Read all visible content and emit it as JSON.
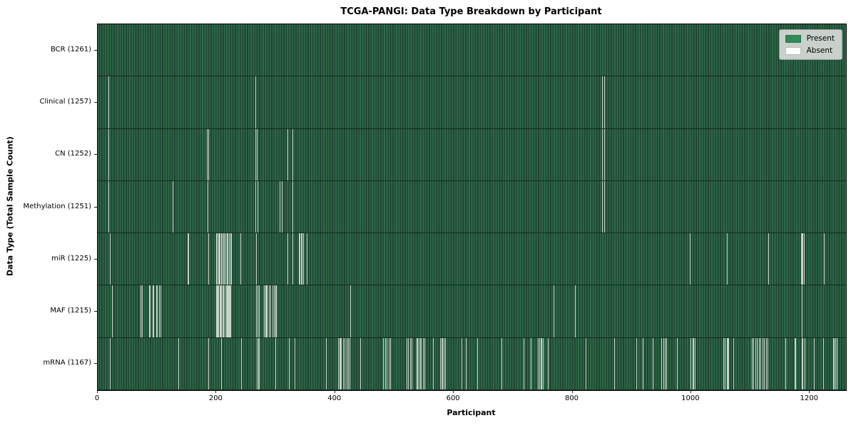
{
  "chart_data": {
    "type": "heatmap",
    "title": "TCGA-PANGI: Data Type Breakdown by Participant",
    "xlabel": "Participant",
    "ylabel": "Data Type (Total Sample Count)",
    "x_ticks": [
      0,
      200,
      400,
      600,
      800,
      1000,
      1200
    ],
    "xlim": [
      0,
      1261
    ],
    "n_participants": 1261,
    "grid": false,
    "legend": {
      "position": "upper right",
      "items": [
        {
          "label": "Present",
          "color": "#2e8b57"
        },
        {
          "label": "Absent",
          "color": "#ffffff"
        }
      ]
    },
    "colors": {
      "present": "#2e8b57",
      "absent": "#ffffff",
      "stripe_light": "#2f6a49",
      "stripe_dark": "#1e4531",
      "absent_line": "#c9d3ca",
      "row_divider": "#142a1c",
      "legend_bg": "#d8dbd8"
    },
    "rows": [
      {
        "label": "BCR",
        "count": 1261,
        "display": "BCR (1261)",
        "absent_indices": []
      },
      {
        "label": "Clinical",
        "count": 1257,
        "display": "Clinical (1257)",
        "absent_indices": [
          18,
          266,
          850,
          853
        ]
      },
      {
        "label": "CN",
        "count": 1252,
        "display": "CN (1252)",
        "absent_indices": [
          18,
          184,
          186,
          266,
          268,
          320,
          328,
          850,
          853
        ]
      },
      {
        "label": "Methylation",
        "count": 1251,
        "display": "Methylation (1251)",
        "absent_indices": [
          18,
          126,
          185,
          266,
          269,
          306,
          310,
          328,
          850,
          853
        ]
      },
      {
        "label": "miR",
        "count": 1225,
        "display": "miR (1225)",
        "absent_indices": [
          20,
          152,
          186,
          200,
          201,
          203,
          204,
          206,
          208,
          209,
          211,
          213,
          215,
          217,
          219,
          221,
          223,
          225,
          240,
          267,
          320,
          328,
          339,
          340,
          342,
          344,
          346,
          352,
          998,
          1060,
          1130,
          1185,
          1186,
          1188,
          1190,
          1224
        ]
      },
      {
        "label": "MAF",
        "count": 1215,
        "display": "MAF (1215)",
        "absent_indices": [
          24,
          72,
          75,
          86,
          88,
          92,
          94,
          98,
          100,
          103,
          106,
          200,
          201,
          202,
          203,
          205,
          206,
          207,
          208,
          210,
          212,
          214,
          216,
          218,
          219,
          220,
          221,
          222,
          223,
          224,
          267,
          269,
          272,
          280,
          283,
          285,
          288,
          291,
          294,
          297,
          299,
          300,
          425,
          768,
          804,
          1186
        ]
      },
      {
        "label": "mRNA",
        "count": 1167,
        "display": "mRNA (1167)",
        "absent_indices": [
          20,
          136,
          186,
          208,
          242,
          268,
          270,
          272,
          299,
          322,
          332,
          385,
          405,
          408,
          410,
          413,
          416,
          419,
          422,
          424,
          442,
          481,
          484,
          487,
          490,
          493,
          520,
          523,
          526,
          529,
          537,
          539,
          541,
          543,
          545,
          548,
          550,
          565,
          577,
          580,
          583,
          585,
          613,
          620,
          640,
          680,
          718,
          730,
          742,
          744,
          746,
          748,
          750,
          758,
          822,
          870,
          908,
          918,
          935,
          950,
          953,
          956,
          958,
          976,
          999,
          1002,
          1004,
          1006,
          1054,
          1057,
          1060,
          1062,
          1071,
          1102,
          1105,
          1108,
          1111,
          1114,
          1117,
          1120,
          1123,
          1126,
          1129,
          1159,
          1175,
          1186,
          1188,
          1191,
          1207,
          1222,
          1239,
          1241,
          1243,
          1245
        ]
      }
    ]
  }
}
